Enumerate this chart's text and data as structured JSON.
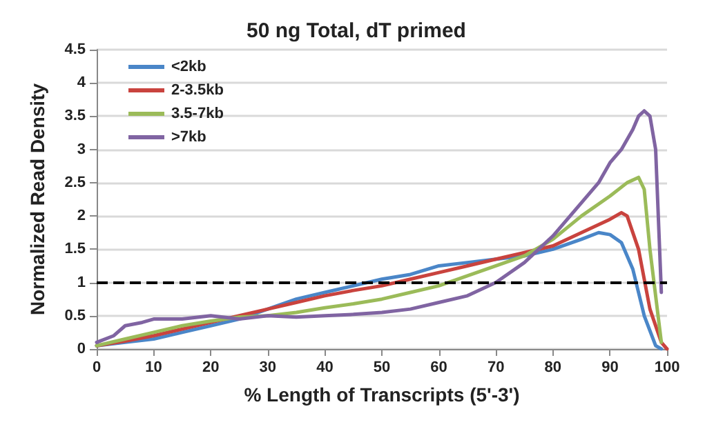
{
  "chart_data": {
    "type": "line",
    "title": "50 ng Total, dT primed",
    "xlabel": "% Length of Transcripts (5'-3')",
    "ylabel": "Normalized Read Density",
    "xlim": [
      0,
      100
    ],
    "xticks": [
      0,
      10,
      20,
      30,
      40,
      50,
      60,
      70,
      80,
      90,
      100
    ],
    "ylim": [
      0,
      4.5
    ],
    "yticks": [
      0,
      0.5,
      1,
      1.5,
      2,
      2.5,
      3,
      3.5,
      4,
      4.5
    ],
    "grid": "y",
    "legend": "top left",
    "marker": "none",
    "line_style": "solid",
    "ref_lines": [
      {
        "axis": "y",
        "value": 1,
        "line_style": "dashed",
        "color": "#000000"
      }
    ],
    "series": [
      {
        "name": "<2kb",
        "color": "#4a86c8",
        "x": [
          0,
          5,
          10,
          15,
          20,
          25,
          30,
          35,
          40,
          45,
          50,
          55,
          60,
          65,
          70,
          75,
          80,
          85,
          88,
          90,
          92,
          94,
          96,
          98,
          99
        ],
        "values": [
          0.05,
          0.1,
          0.15,
          0.25,
          0.35,
          0.45,
          0.6,
          0.75,
          0.85,
          0.95,
          1.05,
          1.12,
          1.25,
          1.3,
          1.35,
          1.4,
          1.5,
          1.65,
          1.75,
          1.72,
          1.6,
          1.2,
          0.5,
          0.05,
          0
        ]
      },
      {
        "name": "2-3.5kb",
        "color": "#c9433e",
        "x": [
          0,
          5,
          10,
          15,
          20,
          25,
          30,
          35,
          40,
          45,
          50,
          55,
          60,
          65,
          70,
          75,
          80,
          85,
          90,
          92,
          93,
          95,
          97,
          99,
          100
        ],
        "values": [
          0.05,
          0.12,
          0.2,
          0.3,
          0.4,
          0.5,
          0.6,
          0.7,
          0.8,
          0.88,
          0.95,
          1.05,
          1.15,
          1.25,
          1.35,
          1.45,
          1.55,
          1.75,
          1.95,
          2.05,
          2.0,
          1.5,
          0.6,
          0.1,
          0
        ]
      },
      {
        "name": "3.5-7kb",
        "color": "#9bbb59",
        "x": [
          0,
          5,
          10,
          15,
          20,
          25,
          30,
          35,
          40,
          45,
          50,
          55,
          60,
          65,
          70,
          75,
          80,
          85,
          90,
          93,
          95,
          96,
          97,
          99
        ],
        "values": [
          0.05,
          0.15,
          0.25,
          0.35,
          0.42,
          0.48,
          0.5,
          0.55,
          0.62,
          0.68,
          0.75,
          0.85,
          0.95,
          1.1,
          1.25,
          1.4,
          1.65,
          2.0,
          2.3,
          2.5,
          2.58,
          2.4,
          1.5,
          0.1
        ]
      },
      {
        "name": ">7kb",
        "color": "#8064a2",
        "x": [
          0,
          3,
          5,
          8,
          10,
          15,
          20,
          25,
          30,
          35,
          40,
          45,
          50,
          55,
          60,
          65,
          70,
          75,
          80,
          85,
          88,
          90,
          92,
          94,
          95,
          96,
          97,
          98,
          99
        ],
        "values": [
          0.1,
          0.2,
          0.35,
          0.4,
          0.45,
          0.45,
          0.5,
          0.45,
          0.5,
          0.48,
          0.5,
          0.52,
          0.55,
          0.6,
          0.7,
          0.8,
          1.0,
          1.3,
          1.7,
          2.2,
          2.5,
          2.8,
          3.0,
          3.3,
          3.5,
          3.58,
          3.5,
          3.0,
          0.85
        ]
      }
    ]
  }
}
